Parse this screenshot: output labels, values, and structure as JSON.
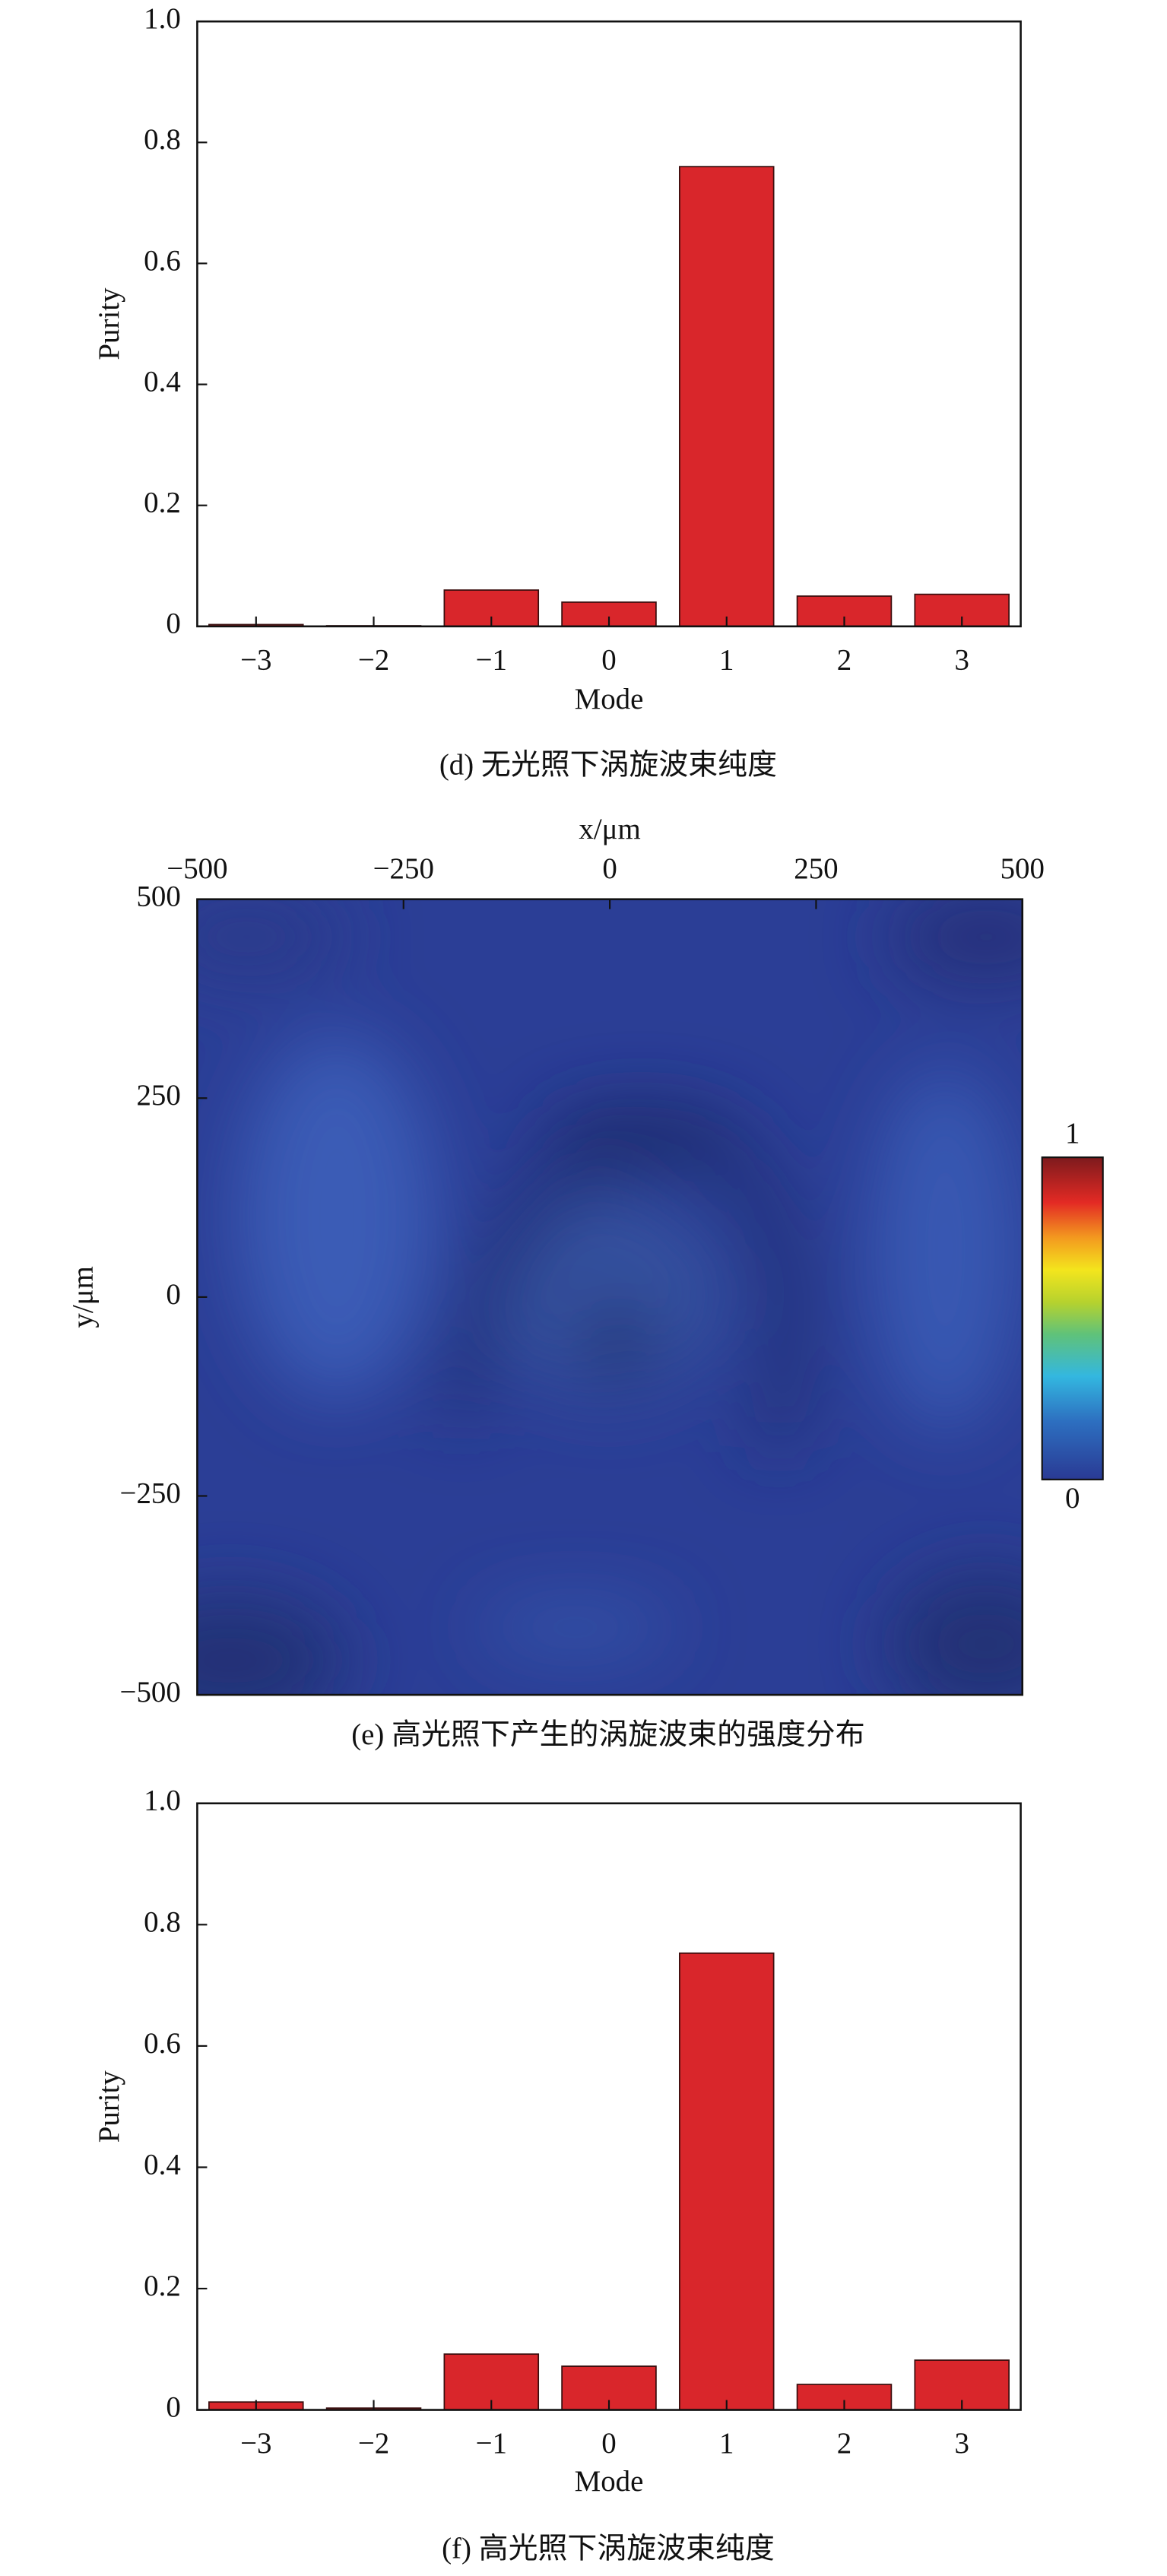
{
  "chart_data": [
    {
      "type": "bar",
      "caption": "(d) 无光照下涡旋波束纯度",
      "xlabel": "Mode",
      "ylabel": "Purity",
      "categories": [
        "−3",
        "−2",
        "−1",
        "0",
        "1",
        "2",
        "3"
      ],
      "values": [
        0.003,
        0.001,
        0.06,
        0.04,
        0.76,
        0.05,
        0.053
      ],
      "color": "#d9262b",
      "ylim": [
        0,
        1
      ],
      "yticks": [
        0,
        0.2,
        0.4,
        0.6,
        0.8,
        {
          "value": 1,
          "label": "1.0"
        }
      ]
    },
    {
      "type": "heatmap",
      "caption": "(e) 高光照下产生的涡旋波束的强度分布",
      "xlabel": "x/μm",
      "ylabel": "y/μm",
      "xlim": [
        -500,
        500
      ],
      "ylim": [
        -500,
        500
      ],
      "xticks": [
        {
          "value": -500,
          "label": "−500"
        },
        {
          "value": -250,
          "label": "−250"
        },
        0,
        250,
        500
      ],
      "yticks": [
        {
          "value": -500,
          "label": "−500"
        },
        {
          "value": -250,
          "label": "−250"
        },
        0,
        250,
        500
      ],
      "clim": [
        0,
        1
      ],
      "cticks": [
        0,
        1
      ]
    },
    {
      "type": "bar",
      "caption": "(f) 高光照下涡旋波束纯度",
      "xlabel": "Mode",
      "ylabel": "Purity",
      "categories": [
        "−3",
        "−2",
        "−1",
        "0",
        "1",
        "2",
        "3"
      ],
      "values": [
        0.013,
        0.003,
        0.092,
        0.072,
        0.753,
        0.042,
        0.082
      ],
      "color": "#d9262b",
      "ylim": [
        0,
        1
      ],
      "yticks": [
        0,
        0.2,
        0.4,
        0.6,
        0.8,
        {
          "value": 1,
          "label": "1.0"
        }
      ]
    }
  ]
}
